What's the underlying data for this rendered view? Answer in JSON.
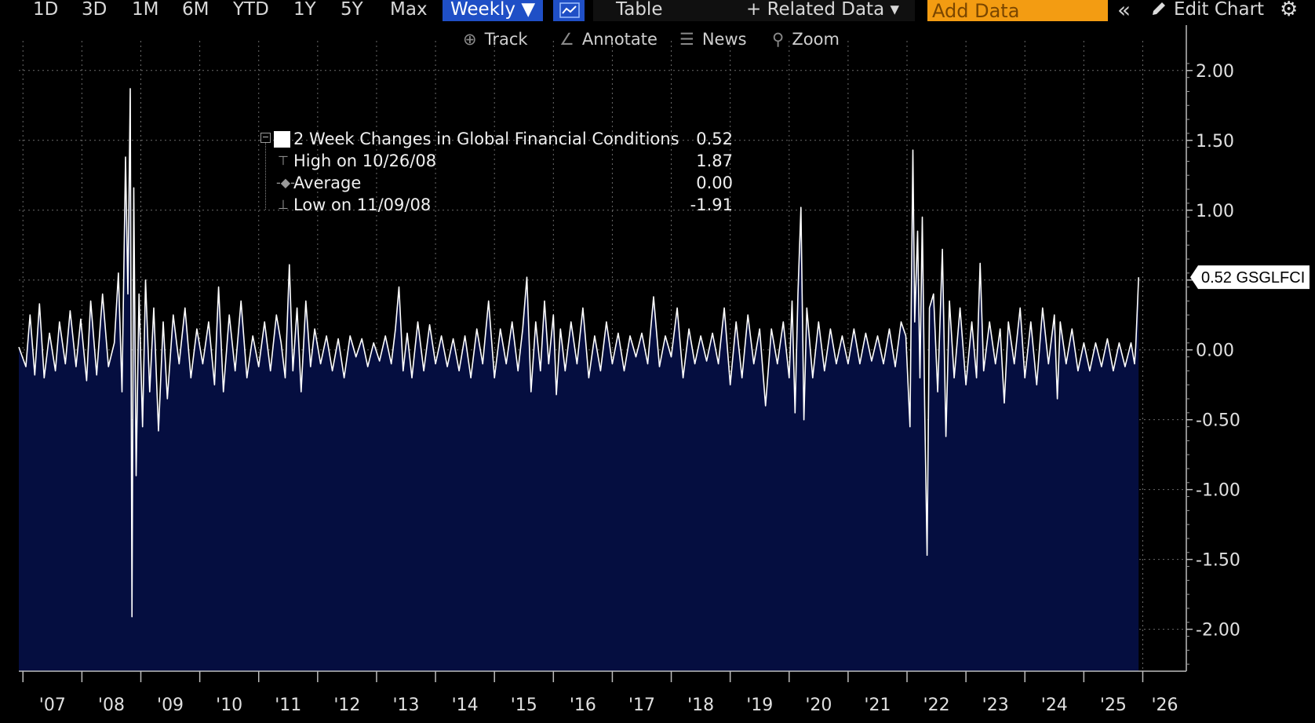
{
  "toolbar": {
    "ranges": [
      "1D",
      "3D",
      "1M",
      "6M",
      "YTD",
      "1Y",
      "5Y",
      "Max"
    ],
    "frequency": "Weekly ▼",
    "table": "Table",
    "related": "+ Related Data ▾",
    "add_data_placeholder": "Add Data",
    "collapse": "«",
    "edit": "Edit Chart",
    "settings": "⚙"
  },
  "tools": {
    "track": "Track",
    "annotate": "Annotate",
    "news": "News",
    "zoom": "Zoom"
  },
  "legend": {
    "series": {
      "label": "2 Week Changes in Global Financial Conditions",
      "value": "0.52"
    },
    "high": {
      "label": "High on 10/26/08",
      "value": "1.87"
    },
    "average": {
      "label": "Average",
      "value": "0.00"
    },
    "low": {
      "label": "Low on 11/09/08",
      "value": "-1.91"
    }
  },
  "chart_data": {
    "type": "area",
    "title": "",
    "xlabel": "",
    "ylabel": "",
    "ylim": [
      -2.3,
      2.1
    ],
    "y_ticks": [
      2.0,
      1.5,
      1.0,
      0.5,
      0.0,
      -0.5,
      -1.0,
      -1.5,
      -2.0
    ],
    "y_tick_labels": [
      "2.00",
      "1.50",
      "1.00",
      "",
      "0.00",
      "-0.50",
      "-1.00",
      "-1.50",
      "-2.00"
    ],
    "x_range": [
      2006.93,
      2026.18
    ],
    "x_ticks": [
      2007,
      2008,
      2009,
      2010,
      2011,
      2012,
      2013,
      2014,
      2015,
      2016,
      2017,
      2018,
      2019,
      2020,
      2021,
      2022,
      2023,
      2024,
      2025,
      2026
    ],
    "x_tick_labels": [
      "'07",
      "'08",
      "'09",
      "'10",
      "'11",
      "'12",
      "'13",
      "'14",
      "'15",
      "'16",
      "'17",
      "'18",
      "'19",
      "'20",
      "'21",
      "'22",
      "'23",
      "'24",
      "'25",
      "'26"
    ],
    "grid": true,
    "last_value_tag": "0.52 GSGLFCI",
    "series": [
      {
        "name": "2 Week Changes in Global Financial Conditions",
        "color": "#ffffff",
        "fill": "#050e40",
        "points": [
          [
            2006.93,
            0.02
          ],
          [
            2007.05,
            -0.12
          ],
          [
            2007.12,
            0.25
          ],
          [
            2007.2,
            -0.18
          ],
          [
            2007.28,
            0.33
          ],
          [
            2007.36,
            -0.2
          ],
          [
            2007.45,
            0.12
          ],
          [
            2007.55,
            -0.15
          ],
          [
            2007.62,
            0.2
          ],
          [
            2007.72,
            -0.1
          ],
          [
            2007.8,
            0.28
          ],
          [
            2007.9,
            -0.12
          ],
          [
            2007.98,
            0.22
          ],
          [
            2008.08,
            -0.22
          ],
          [
            2008.15,
            0.35
          ],
          [
            2008.25,
            -0.18
          ],
          [
            2008.35,
            0.4
          ],
          [
            2008.45,
            -0.12
          ],
          [
            2008.55,
            0.05
          ],
          [
            2008.62,
            0.55
          ],
          [
            2008.68,
            -0.3
          ],
          [
            2008.74,
            1.38
          ],
          [
            2008.78,
            0.4
          ],
          [
            2008.82,
            1.87
          ],
          [
            2008.85,
            -1.91
          ],
          [
            2008.88,
            1.16
          ],
          [
            2008.92,
            -0.9
          ],
          [
            2008.97,
            0.4
          ],
          [
            2009.03,
            -0.55
          ],
          [
            2009.08,
            0.5
          ],
          [
            2009.15,
            -0.3
          ],
          [
            2009.22,
            0.3
          ],
          [
            2009.3,
            -0.58
          ],
          [
            2009.38,
            0.2
          ],
          [
            2009.45,
            -0.35
          ],
          [
            2009.55,
            0.25
          ],
          [
            2009.65,
            -0.1
          ],
          [
            2009.75,
            0.3
          ],
          [
            2009.85,
            -0.2
          ],
          [
            2009.95,
            0.15
          ],
          [
            2010.05,
            -0.1
          ],
          [
            2010.15,
            0.2
          ],
          [
            2010.25,
            -0.25
          ],
          [
            2010.32,
            0.45
          ],
          [
            2010.4,
            -0.3
          ],
          [
            2010.5,
            0.25
          ],
          [
            2010.6,
            -0.15
          ],
          [
            2010.7,
            0.35
          ],
          [
            2010.8,
            -0.2
          ],
          [
            2010.9,
            0.1
          ],
          [
            2011.0,
            -0.12
          ],
          [
            2011.1,
            0.2
          ],
          [
            2011.2,
            -0.15
          ],
          [
            2011.3,
            0.25
          ],
          [
            2011.38,
            0.05
          ],
          [
            2011.45,
            -0.2
          ],
          [
            2011.52,
            0.61
          ],
          [
            2011.58,
            -0.15
          ],
          [
            2011.65,
            0.3
          ],
          [
            2011.72,
            -0.3
          ],
          [
            2011.8,
            0.35
          ],
          [
            2011.88,
            -0.12
          ],
          [
            2011.95,
            0.15
          ],
          [
            2012.05,
            -0.1
          ],
          [
            2012.15,
            0.1
          ],
          [
            2012.25,
            -0.15
          ],
          [
            2012.35,
            0.08
          ],
          [
            2012.45,
            -0.2
          ],
          [
            2012.55,
            0.1
          ],
          [
            2012.65,
            -0.05
          ],
          [
            2012.75,
            0.08
          ],
          [
            2012.85,
            -0.12
          ],
          [
            2012.95,
            0.05
          ],
          [
            2013.05,
            -0.08
          ],
          [
            2013.15,
            0.1
          ],
          [
            2013.25,
            -0.1
          ],
          [
            2013.32,
            0.15
          ],
          [
            2013.38,
            0.45
          ],
          [
            2013.45,
            -0.15
          ],
          [
            2013.52,
            0.12
          ],
          [
            2013.6,
            -0.2
          ],
          [
            2013.7,
            0.2
          ],
          [
            2013.8,
            -0.15
          ],
          [
            2013.9,
            0.18
          ],
          [
            2014.0,
            -0.1
          ],
          [
            2014.1,
            0.1
          ],
          [
            2014.2,
            -0.12
          ],
          [
            2014.3,
            0.08
          ],
          [
            2014.4,
            -0.15
          ],
          [
            2014.5,
            0.1
          ],
          [
            2014.6,
            -0.2
          ],
          [
            2014.7,
            0.15
          ],
          [
            2014.8,
            -0.1
          ],
          [
            2014.9,
            0.35
          ],
          [
            2015.0,
            -0.2
          ],
          [
            2015.1,
            0.15
          ],
          [
            2015.2,
            -0.1
          ],
          [
            2015.3,
            0.2
          ],
          [
            2015.4,
            -0.15
          ],
          [
            2015.48,
            0.15
          ],
          [
            2015.55,
            0.52
          ],
          [
            2015.62,
            -0.3
          ],
          [
            2015.7,
            0.2
          ],
          [
            2015.78,
            -0.15
          ],
          [
            2015.85,
            0.35
          ],
          [
            2015.92,
            -0.1
          ],
          [
            2016.0,
            0.25
          ],
          [
            2016.05,
            -0.32
          ],
          [
            2016.12,
            0.15
          ],
          [
            2016.2,
            -0.15
          ],
          [
            2016.3,
            0.2
          ],
          [
            2016.4,
            -0.1
          ],
          [
            2016.5,
            0.3
          ],
          [
            2016.6,
            -0.2
          ],
          [
            2016.7,
            0.1
          ],
          [
            2016.8,
            -0.15
          ],
          [
            2016.9,
            0.2
          ],
          [
            2017.0,
            -0.1
          ],
          [
            2017.1,
            0.12
          ],
          [
            2017.2,
            -0.15
          ],
          [
            2017.3,
            0.1
          ],
          [
            2017.4,
            -0.05
          ],
          [
            2017.5,
            0.12
          ],
          [
            2017.6,
            -0.1
          ],
          [
            2017.7,
            0.38
          ],
          [
            2017.8,
            -0.12
          ],
          [
            2017.9,
            0.1
          ],
          [
            2018.0,
            -0.05
          ],
          [
            2018.1,
            0.3
          ],
          [
            2018.2,
            -0.2
          ],
          [
            2018.3,
            0.15
          ],
          [
            2018.4,
            -0.1
          ],
          [
            2018.5,
            0.1
          ],
          [
            2018.6,
            -0.08
          ],
          [
            2018.7,
            0.12
          ],
          [
            2018.8,
            -0.1
          ],
          [
            2018.9,
            0.3
          ],
          [
            2019.0,
            -0.25
          ],
          [
            2019.1,
            0.2
          ],
          [
            2019.2,
            -0.2
          ],
          [
            2019.3,
            0.25
          ],
          [
            2019.4,
            -0.1
          ],
          [
            2019.5,
            0.15
          ],
          [
            2019.6,
            -0.4
          ],
          [
            2019.7,
            0.15
          ],
          [
            2019.8,
            -0.1
          ],
          [
            2019.9,
            0.2
          ],
          [
            2020.0,
            -0.2
          ],
          [
            2020.05,
            0.35
          ],
          [
            2020.1,
            -0.45
          ],
          [
            2020.15,
            0.4
          ],
          [
            2020.2,
            1.02
          ],
          [
            2020.25,
            -0.5
          ],
          [
            2020.3,
            0.3
          ],
          [
            2020.4,
            -0.2
          ],
          [
            2020.5,
            0.2
          ],
          [
            2020.6,
            -0.15
          ],
          [
            2020.7,
            0.15
          ],
          [
            2020.8,
            -0.1
          ],
          [
            2020.9,
            0.1
          ],
          [
            2021.0,
            -0.1
          ],
          [
            2021.1,
            0.15
          ],
          [
            2021.2,
            -0.1
          ],
          [
            2021.3,
            0.12
          ],
          [
            2021.4,
            -0.08
          ],
          [
            2021.5,
            0.1
          ],
          [
            2021.6,
            -0.1
          ],
          [
            2021.7,
            0.15
          ],
          [
            2021.8,
            -0.12
          ],
          [
            2021.9,
            0.2
          ],
          [
            2021.98,
            0.1
          ],
          [
            2022.05,
            -0.55
          ],
          [
            2022.1,
            1.43
          ],
          [
            2022.13,
            0.2
          ],
          [
            2022.18,
            0.85
          ],
          [
            2022.22,
            -0.2
          ],
          [
            2022.26,
            0.95
          ],
          [
            2022.3,
            -0.4
          ],
          [
            2022.34,
            -1.47
          ],
          [
            2022.38,
            0.3
          ],
          [
            2022.45,
            0.4
          ],
          [
            2022.52,
            -0.3
          ],
          [
            2022.6,
            0.72
          ],
          [
            2022.66,
            -0.62
          ],
          [
            2022.72,
            0.35
          ],
          [
            2022.8,
            -0.2
          ],
          [
            2022.9,
            0.3
          ],
          [
            2023.0,
            -0.25
          ],
          [
            2023.1,
            0.2
          ],
          [
            2023.18,
            -0.2
          ],
          [
            2023.24,
            0.62
          ],
          [
            2023.3,
            -0.15
          ],
          [
            2023.4,
            0.2
          ],
          [
            2023.5,
            -0.1
          ],
          [
            2023.58,
            0.15
          ],
          [
            2023.65,
            -0.38
          ],
          [
            2023.72,
            0.2
          ],
          [
            2023.82,
            -0.1
          ],
          [
            2023.92,
            0.3
          ],
          [
            2024.0,
            -0.2
          ],
          [
            2024.1,
            0.2
          ],
          [
            2024.2,
            -0.25
          ],
          [
            2024.3,
            0.3
          ],
          [
            2024.4,
            -0.1
          ],
          [
            2024.5,
            0.25
          ],
          [
            2024.55,
            -0.35
          ],
          [
            2024.6,
            0.2
          ],
          [
            2024.7,
            -0.1
          ],
          [
            2024.8,
            0.15
          ],
          [
            2024.9,
            -0.15
          ],
          [
            2025.0,
            0.05
          ],
          [
            2025.1,
            -0.15
          ],
          [
            2025.2,
            0.05
          ],
          [
            2025.3,
            -0.12
          ],
          [
            2025.4,
            0.08
          ],
          [
            2025.5,
            -0.15
          ],
          [
            2025.6,
            0.05
          ],
          [
            2025.7,
            -0.12
          ],
          [
            2025.8,
            0.05
          ],
          [
            2025.86,
            -0.1
          ],
          [
            2025.88,
            0.02
          ],
          [
            2025.93,
            0.52
          ]
        ]
      }
    ]
  }
}
